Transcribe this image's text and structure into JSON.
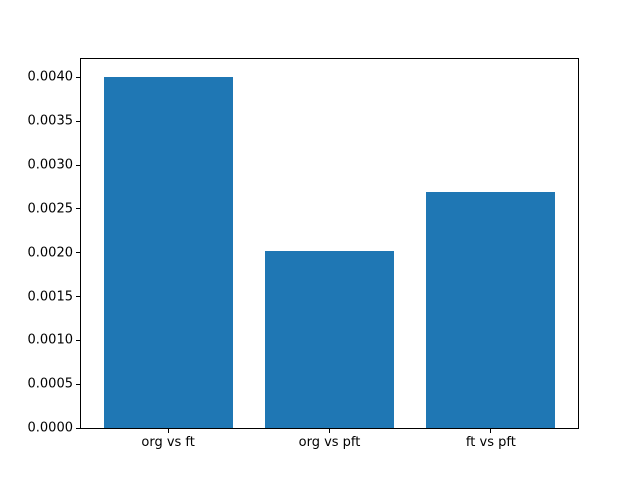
{
  "figure": {
    "background_color": "#ffffff",
    "spine_color": "#000000",
    "tick_color": "#000000"
  },
  "chart_data": {
    "type": "bar",
    "title": "",
    "xlabel": "",
    "ylabel": "",
    "categories": [
      "org vs ft",
      "org vs pft",
      "ft vs pft"
    ],
    "values": [
      0.00401,
      0.00202,
      0.00269
    ],
    "bar_color": "#1f77b4",
    "bar_width_fraction": 0.8,
    "xlim": [
      -0.54,
      2.54
    ],
    "ylim": [
      0,
      0.00421
    ],
    "yticks": [
      0.0,
      0.0005,
      0.001,
      0.0015,
      0.002,
      0.0025,
      0.003,
      0.0035,
      0.004
    ],
    "ytick_labels": [
      "0.0000",
      "0.0005",
      "0.0010",
      "0.0015",
      "0.0020",
      "0.0025",
      "0.0030",
      "0.0035",
      "0.0040"
    ],
    "grid": false,
    "legend": null
  }
}
